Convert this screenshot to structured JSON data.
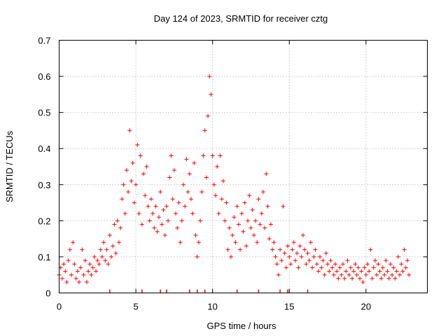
{
  "chart_data": {
    "type": "scatter",
    "title": "Day 124 of 2023, SRMTID for receiver cztg",
    "xlabel": "GPS time / hours",
    "ylabel": "SRMTID / TECUs",
    "xlim": [
      0,
      24
    ],
    "ylim": [
      0,
      0.7
    ],
    "xticks": [
      0,
      5,
      10,
      15,
      20
    ],
    "yticks": [
      0,
      0.1,
      0.2,
      0.3,
      0.4,
      0.5,
      0.6,
      0.7
    ],
    "xtick_labels": [
      "0",
      "5",
      "10",
      "15",
      "20"
    ],
    "ytick_labels": [
      "0",
      "0.1",
      "0.2",
      "0.3",
      "0.4",
      "0.5",
      "0.6",
      "0.7"
    ],
    "grid": true,
    "marker": "plus",
    "color": "#ff0000",
    "series": [
      {
        "name": "SRMTID",
        "points": [
          [
            0.0,
            0.05
          ],
          [
            0.1,
            0.07
          ],
          [
            0.2,
            0.04
          ],
          [
            0.3,
            0.08
          ],
          [
            0.4,
            0.06
          ],
          [
            0.5,
            0.03
          ],
          [
            0.6,
            0.09
          ],
          [
            0.7,
            0.12
          ],
          [
            0.8,
            0.05
          ],
          [
            0.9,
            0.14
          ],
          [
            1.0,
            0.08
          ],
          [
            1.1,
            0.04
          ],
          [
            1.2,
            0.06
          ],
          [
            1.3,
            0.03
          ],
          [
            1.4,
            0.07
          ],
          [
            1.5,
            0.12
          ],
          [
            1.6,
            0.05
          ],
          [
            1.7,
            0.09
          ],
          [
            1.8,
            0.03
          ],
          [
            1.9,
            0.06
          ],
          [
            2.0,
            0.08
          ],
          [
            2.1,
            0.05
          ],
          [
            2.2,
            0.07
          ],
          [
            2.3,
            0.1
          ],
          [
            2.4,
            0.06
          ],
          [
            2.5,
            0.09
          ],
          [
            2.6,
            0.08
          ],
          [
            2.7,
            0.12
          ],
          [
            2.8,
            0.1
          ],
          [
            2.9,
            0.14
          ],
          [
            3.0,
            0.09
          ],
          [
            3.1,
            0.12
          ],
          [
            3.2,
            0.08
          ],
          [
            3.3,
            0.16
          ],
          [
            3.4,
            0.1
          ],
          [
            3.5,
            0.13
          ],
          [
            3.6,
            0.19
          ],
          [
            3.7,
            0.11
          ],
          [
            3.8,
            0.2
          ],
          [
            3.9,
            0.14
          ],
          [
            4.0,
            0.18
          ],
          [
            4.1,
            0.26
          ],
          [
            4.2,
            0.3
          ],
          [
            4.3,
            0.22
          ],
          [
            4.4,
            0.34
          ],
          [
            4.5,
            0.28
          ],
          [
            4.6,
            0.45
          ],
          [
            4.7,
            0.31
          ],
          [
            4.8,
            0.36
          ],
          [
            4.9,
            0.25
          ],
          [
            5.0,
            0.3
          ],
          [
            5.1,
            0.41
          ],
          [
            5.2,
            0.22
          ],
          [
            5.3,
            0.38
          ],
          [
            5.4,
            0.19
          ],
          [
            5.5,
            0.33
          ],
          [
            5.6,
            0.27
          ],
          [
            5.7,
            0.35
          ],
          [
            5.8,
            0.24
          ],
          [
            5.9,
            0.2
          ],
          [
            6.0,
            0.26
          ],
          [
            6.1,
            0.22
          ],
          [
            6.2,
            0.18
          ],
          [
            6.3,
            0.24
          ],
          [
            6.4,
            0.17
          ],
          [
            6.5,
            0.21
          ],
          [
            6.6,
            0.28
          ],
          [
            6.7,
            0.19
          ],
          [
            6.8,
            0.23
          ],
          [
            6.9,
            0.16
          ],
          [
            7.0,
            0.24
          ],
          [
            7.1,
            0.2
          ],
          [
            7.2,
            0.32
          ],
          [
            7.3,
            0.38
          ],
          [
            7.4,
            0.26
          ],
          [
            7.5,
            0.34
          ],
          [
            7.6,
            0.22
          ],
          [
            7.7,
            0.18
          ],
          [
            7.8,
            0.25
          ],
          [
            7.9,
            0.14
          ],
          [
            8.0,
            0.2
          ],
          [
            8.1,
            0.3
          ],
          [
            8.2,
            0.24
          ],
          [
            8.3,
            0.37
          ],
          [
            8.4,
            0.28
          ],
          [
            8.5,
            0.33
          ],
          [
            8.6,
            0.26
          ],
          [
            8.7,
            0.22
          ],
          [
            8.8,
            0.36
          ],
          [
            8.9,
            0.16
          ],
          [
            9.0,
            0.1
          ],
          [
            9.1,
            0.14
          ],
          [
            9.2,
            0.2
          ],
          [
            9.3,
            0.28
          ],
          [
            9.4,
            0.38
          ],
          [
            9.5,
            0.45
          ],
          [
            9.6,
            0.32
          ],
          [
            9.7,
            0.49
          ],
          [
            9.8,
            0.6
          ],
          [
            9.9,
            0.55
          ],
          [
            10.0,
            0.38
          ],
          [
            10.1,
            0.3
          ],
          [
            10.2,
            0.27
          ],
          [
            10.3,
            0.35
          ],
          [
            10.4,
            0.22
          ],
          [
            10.5,
            0.38
          ],
          [
            10.6,
            0.26
          ],
          [
            10.7,
            0.31
          ],
          [
            10.8,
            0.2
          ],
          [
            10.9,
            0.25
          ],
          [
            11.0,
            0.12
          ],
          [
            11.1,
            0.18
          ],
          [
            11.2,
            0.1
          ],
          [
            11.3,
            0.16
          ],
          [
            11.4,
            0.21
          ],
          [
            11.5,
            0.14
          ],
          [
            11.6,
            0.24
          ],
          [
            11.7,
            0.19
          ],
          [
            11.8,
            0.12
          ],
          [
            11.9,
            0.22
          ],
          [
            12.0,
            0.17
          ],
          [
            12.1,
            0.25
          ],
          [
            12.2,
            0.13
          ],
          [
            12.3,
            0.2
          ],
          [
            12.4,
            0.27
          ],
          [
            12.5,
            0.18
          ],
          [
            12.6,
            0.23
          ],
          [
            12.7,
            0.16
          ],
          [
            12.8,
            0.2
          ],
          [
            12.9,
            0.14
          ],
          [
            13.0,
            0.26
          ],
          [
            13.1,
            0.19
          ],
          [
            13.2,
            0.22
          ],
          [
            13.3,
            0.28
          ],
          [
            13.4,
            0.18
          ],
          [
            13.5,
            0.33
          ],
          [
            13.6,
            0.24
          ],
          [
            13.7,
            0.15
          ],
          [
            13.8,
            0.19
          ],
          [
            13.9,
            0.12
          ],
          [
            14.0,
            0.14
          ],
          [
            14.1,
            0.1
          ],
          [
            14.2,
            0.08
          ],
          [
            14.3,
            0.05
          ],
          [
            14.4,
            0.12
          ],
          [
            14.5,
            0.09
          ],
          [
            14.6,
            0.24
          ],
          [
            14.7,
            0.11
          ],
          [
            14.8,
            0.07
          ],
          [
            14.9,
            0.13
          ],
          [
            15.0,
            0.1
          ],
          [
            15.1,
            0.08
          ],
          [
            15.2,
            0.12
          ],
          [
            15.3,
            0.14
          ],
          [
            15.4,
            0.09
          ],
          [
            15.5,
            0.11
          ],
          [
            15.6,
            0.07
          ],
          [
            15.7,
            0.13
          ],
          [
            15.8,
            0.1
          ],
          [
            15.9,
            0.16
          ],
          [
            16.0,
            0.12
          ],
          [
            16.1,
            0.08
          ],
          [
            16.2,
            0.11
          ],
          [
            16.3,
            0.09
          ],
          [
            16.4,
            0.14
          ],
          [
            16.5,
            0.07
          ],
          [
            16.6,
            0.1
          ],
          [
            16.7,
            0.12
          ],
          [
            16.8,
            0.08
          ],
          [
            16.9,
            0.06
          ],
          [
            17.0,
            0.1
          ],
          [
            17.1,
            0.07
          ],
          [
            17.2,
            0.09
          ],
          [
            17.3,
            0.05
          ],
          [
            17.4,
            0.11
          ],
          [
            17.5,
            0.08
          ],
          [
            17.6,
            0.06
          ],
          [
            17.7,
            0.09
          ],
          [
            17.8,
            0.07
          ],
          [
            17.9,
            0.05
          ],
          [
            18.0,
            0.08
          ],
          [
            18.1,
            0.06
          ],
          [
            18.2,
            0.04
          ],
          [
            18.3,
            0.07
          ],
          [
            18.4,
            0.05
          ],
          [
            18.5,
            0.08
          ],
          [
            18.6,
            0.04
          ],
          [
            18.7,
            0.06
          ],
          [
            18.8,
            0.09
          ],
          [
            18.9,
            0.05
          ],
          [
            19.0,
            0.07
          ],
          [
            19.1,
            0.04
          ],
          [
            19.2,
            0.06
          ],
          [
            19.3,
            0.08
          ],
          [
            19.4,
            0.05
          ],
          [
            19.5,
            0.07
          ],
          [
            19.6,
            0.04
          ],
          [
            19.7,
            0.06
          ],
          [
            19.8,
            0.03
          ],
          [
            19.9,
            0.07
          ],
          [
            20.0,
            0.05
          ],
          [
            20.1,
            0.08
          ],
          [
            20.2,
            0.06
          ],
          [
            20.3,
            0.12
          ],
          [
            20.4,
            0.04
          ],
          [
            20.5,
            0.07
          ],
          [
            20.6,
            0.09
          ],
          [
            20.7,
            0.05
          ],
          [
            20.8,
            0.08
          ],
          [
            20.9,
            0.06
          ],
          [
            21.0,
            0.04
          ],
          [
            21.1,
            0.07
          ],
          [
            21.2,
            0.05
          ],
          [
            21.3,
            0.09
          ],
          [
            21.4,
            0.06
          ],
          [
            21.5,
            0.04
          ],
          [
            21.6,
            0.08
          ],
          [
            21.7,
            0.05
          ],
          [
            21.8,
            0.07
          ],
          [
            21.9,
            0.04
          ],
          [
            22.0,
            0.06
          ],
          [
            22.1,
            0.1
          ],
          [
            22.2,
            0.05
          ],
          [
            22.3,
            0.08
          ],
          [
            22.4,
            0.06
          ],
          [
            22.5,
            0.12
          ],
          [
            22.6,
            0.07
          ],
          [
            22.7,
            0.09
          ],
          [
            22.8,
            0.05
          ]
        ]
      }
    ],
    "rug_x": [
      3.3,
      5.4,
      6.6,
      7.0,
      8.5,
      9.0,
      9.5,
      11.6,
      13.0,
      14.4,
      14.9,
      16.2
    ]
  }
}
